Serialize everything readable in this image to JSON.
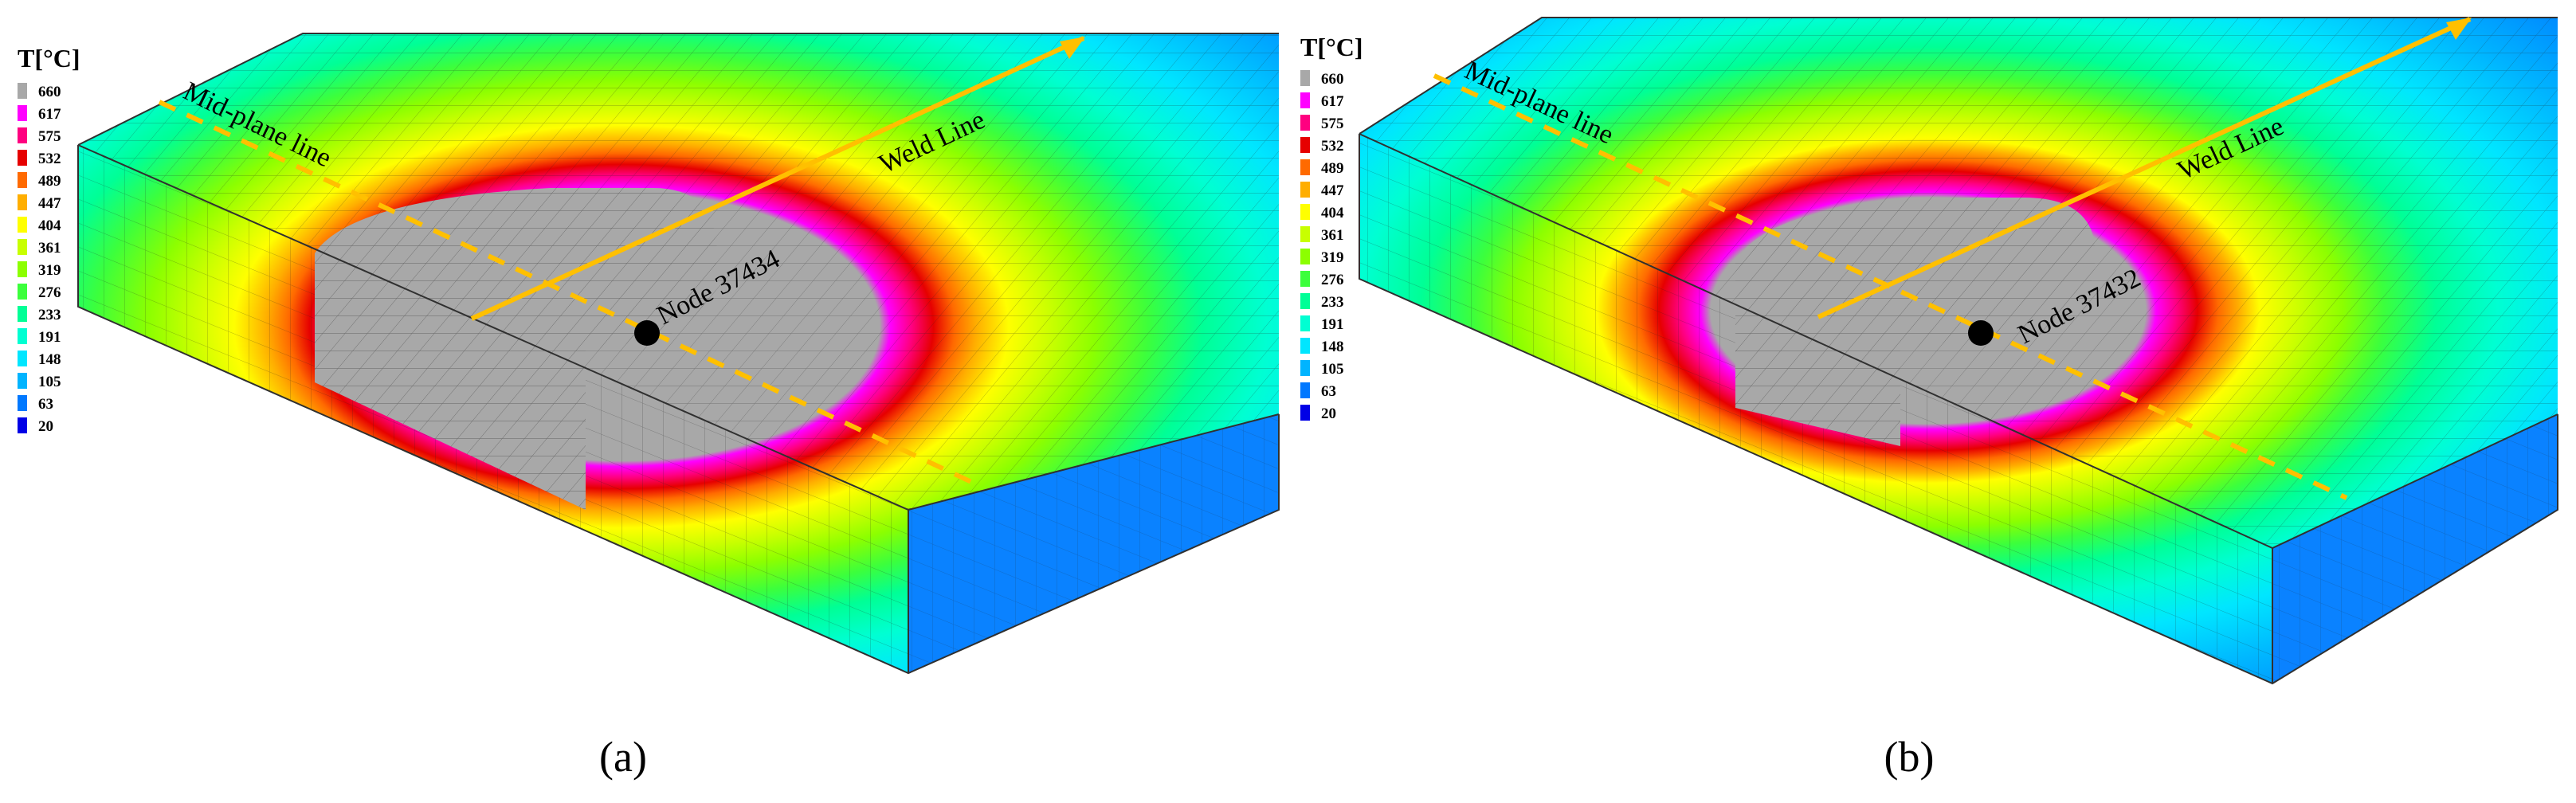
{
  "legend": {
    "title": "T[°C]",
    "levels": [
      {
        "value": "660",
        "color": "#a8a8a8"
      },
      {
        "value": "617",
        "color": "#ff00ff"
      },
      {
        "value": "575",
        "color": "#ff0080"
      },
      {
        "value": "532",
        "color": "#e60000"
      },
      {
        "value": "489",
        "color": "#ff6a00"
      },
      {
        "value": "447",
        "color": "#ffae00"
      },
      {
        "value": "404",
        "color": "#ffff00"
      },
      {
        "value": "361",
        "color": "#c8ff00"
      },
      {
        "value": "319",
        "color": "#8cff00"
      },
      {
        "value": "276",
        "color": "#3cff3c"
      },
      {
        "value": "233",
        "color": "#00ff96"
      },
      {
        "value": "191",
        "color": "#00ffd2"
      },
      {
        "value": "148",
        "color": "#00e6ff"
      },
      {
        "value": "105",
        "color": "#00b4ff"
      },
      {
        "value": "63",
        "color": "#0078ff"
      },
      {
        "value": "20",
        "color": "#0000e6"
      }
    ]
  },
  "panels": [
    {
      "label": "(a)",
      "node_label": "Node 37434",
      "midplane_label": "Mid-plane line",
      "weld_label": "Weld Line"
    },
    {
      "label": "(b)",
      "node_label": "Node 37432",
      "midplane_label": "Mid-plane line",
      "weld_label": "Weld Line"
    }
  ],
  "colors": {
    "arrow": "#ffc000",
    "mesh": "#202020",
    "marker": "#000000"
  }
}
